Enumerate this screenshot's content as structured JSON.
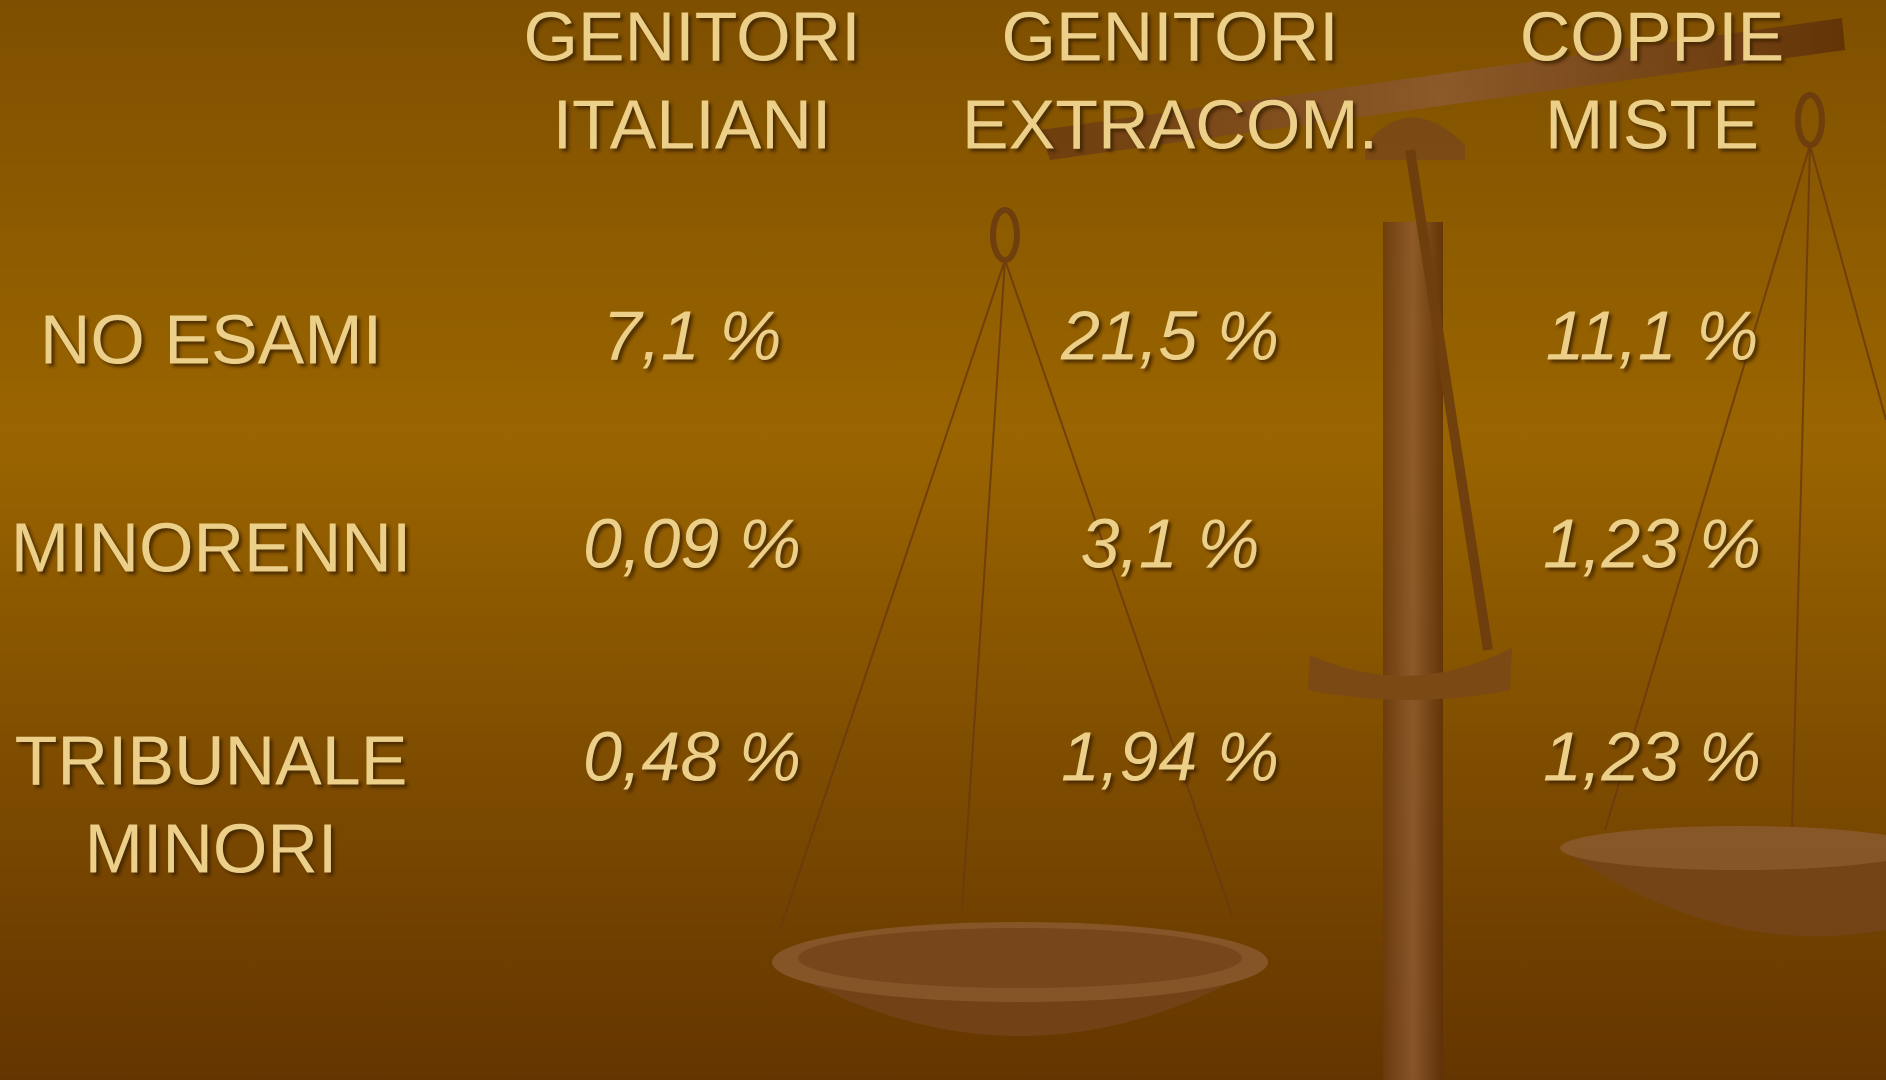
{
  "table": {
    "columns": [
      [
        "GENITORI",
        "ITALIANI"
      ],
      [
        "GENITORI",
        "EXTRACOM."
      ],
      [
        "COPPIE",
        "MISTE"
      ]
    ],
    "rows": [
      {
        "label": [
          "NO ESAMI"
        ],
        "values": [
          "7,1 %",
          "21,5 %",
          "11,1 %"
        ]
      },
      {
        "label": [
          "MINORENNI"
        ],
        "values": [
          "0,09 %",
          "3,1 %",
          "1,23 %"
        ]
      },
      {
        "label": [
          "TRIBUNALE",
          "MINORI"
        ],
        "values": [
          "0,48 %",
          "1,94 %",
          "1,23 %"
        ]
      }
    ]
  }
}
